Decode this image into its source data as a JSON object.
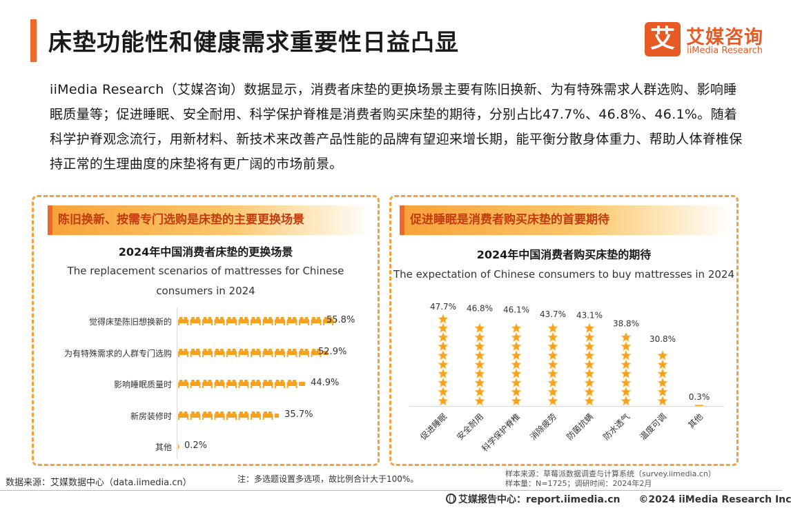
{
  "header": {
    "title": "床垫功能性和健康需求重要性日益凸显",
    "logo_mark": "艾",
    "logo_cn": "艾媒咨询",
    "logo_en": "iiMedia Research"
  },
  "intro": "iiMedia Research（艾媒咨询）数据显示，消费者床垫的更换场景主要有陈旧换新、为有特殊需求人群选购、影响睡眠质量等；促进睡眠、安全耐用、科学保护脊椎是消费者购买床垫的期待，分别占比47.7%、46.8%、46.1%。随着科学护脊观念流行，用新材料、新技术来改善产品性能的品牌有望迎来增长期，能平衡分散身体重力、帮助人体脊椎保持正常的生理曲度的床垫将有更广阔的市场前景。",
  "left_panel": {
    "tag": "陈旧换新、按需专门选购是床垫的主要更换场景"
  },
  "right_panel": {
    "tag": "促进睡眠是消费者购买床垫的首要期待"
  },
  "chart_data": [
    {
      "type": "bar",
      "orientation": "horizontal",
      "title": "2024年中国消费者床垫的更换场景",
      "subtitle": "The replacement scenarios of mattresses for Chinese consumers in 2024",
      "categories": [
        "觉得床垫陈旧想换新的",
        "为有特殊需求的人群专门选购",
        "影响睡眠质量时",
        "新房装修时",
        "其他"
      ],
      "values": [
        55.8,
        52.9,
        44.9,
        35.7,
        0.2
      ],
      "value_labels": [
        "55.8%",
        "52.9%",
        "44.9%",
        "35.7%",
        "0.2%"
      ],
      "unit": "%",
      "xlim": [
        0,
        60
      ],
      "mark": "mattress-icon",
      "color": "#f7a21e"
    },
    {
      "type": "bar",
      "orientation": "vertical",
      "title": "2024年中国消费者购买床垫的期待",
      "subtitle": "The expectation of Chinese consumers to buy mattresses in 2024",
      "categories": [
        "促进睡眠",
        "安全耐用",
        "科学保护脊椎",
        "消除疲劳",
        "防菌抗螨",
        "防水透气",
        "温度可调",
        "其他"
      ],
      "values": [
        47.7,
        46.8,
        46.1,
        43.7,
        43.1,
        38.8,
        30.8,
        0.3
      ],
      "value_labels": [
        "47.7%",
        "46.8%",
        "46.1%",
        "43.7%",
        "43.1%",
        "38.8%",
        "30.8%",
        "0.3%"
      ],
      "unit": "%",
      "ylim": [
        0,
        50
      ],
      "mark": "star-icon",
      "color": "#f7a21e"
    }
  ],
  "footer": {
    "source": "数据来源：艾媒数据中心（data.iimedia.cn）",
    "note": "注：多选题设置多选项，故比例合计大于100%。",
    "sample_source": "样本来源：草莓派数据调查与计算系统（survey.iimedia.cn）",
    "sample_size": "样本量：N=1725；调研时间：2024年2月",
    "report_center": "艾媒报告中心：report.iimedia.cn",
    "copyright": "©2024  iiMedia Research  Inc"
  },
  "colors": {
    "accent": "#ee6a2c",
    "bar": "#f7a21e",
    "panel_border": "#f4a13d",
    "tag_text": "#c23b10"
  }
}
